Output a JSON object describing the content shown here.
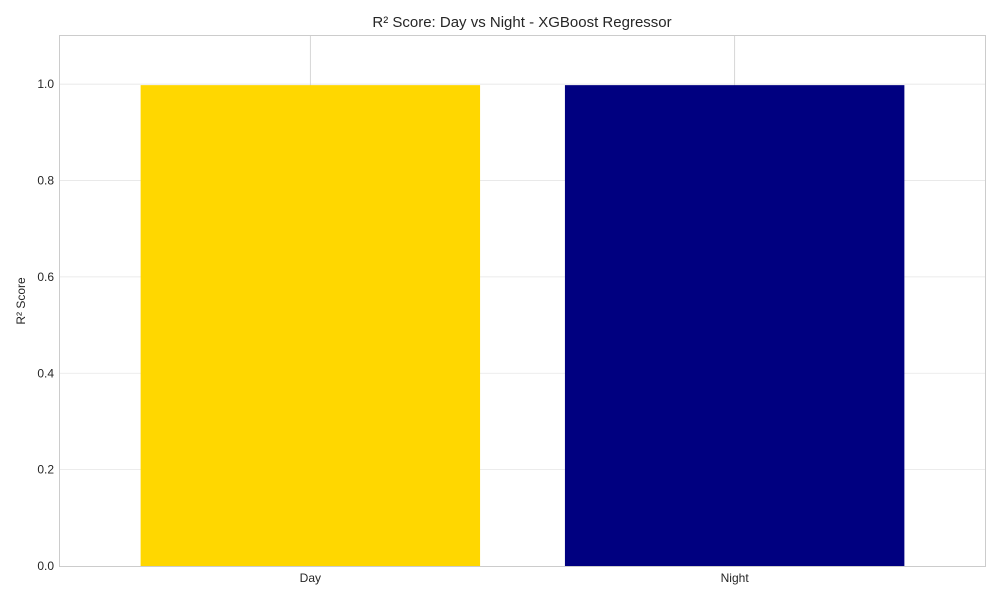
{
  "chart_data": {
    "type": "bar",
    "title": "R² Score: Day vs Night - XGBoost Regressor",
    "xlabel": "",
    "ylabel": "R² Score",
    "categories": [
      "Day",
      "Night"
    ],
    "values": [
      0.998,
      0.998
    ],
    "colors": [
      "#FFD700",
      "#000080"
    ],
    "ylim": [
      0,
      1.1
    ],
    "yticks": [
      "0.0",
      "0.2",
      "0.4",
      "0.6",
      "0.8",
      "1.0"
    ],
    "grid": true,
    "legend": "none"
  }
}
